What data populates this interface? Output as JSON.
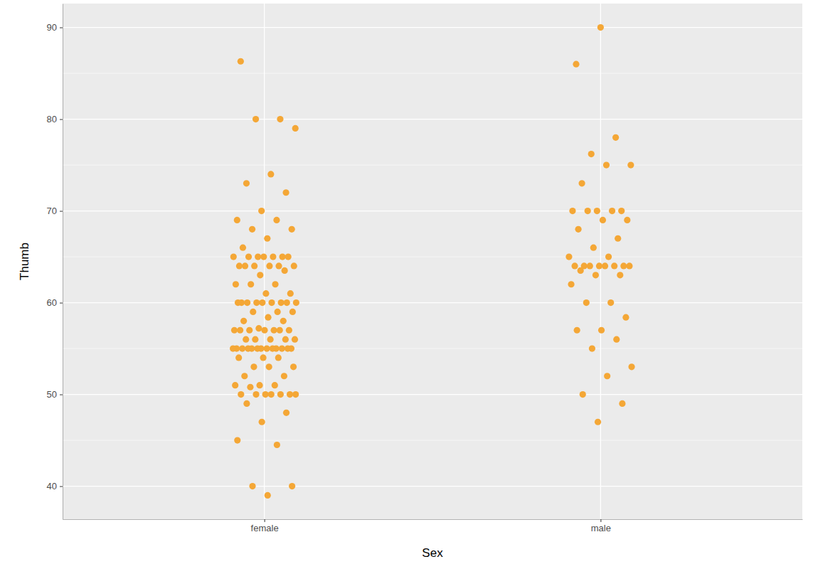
{
  "chart_data": {
    "type": "scatter",
    "x_label": "Sex",
    "y_label": "Thumb",
    "categories": [
      "female",
      "male"
    ],
    "values": [
      [
        86.3,
        80,
        80,
        79,
        74,
        73,
        72,
        70,
        69,
        69,
        68,
        68,
        67,
        66,
        65,
        65,
        65,
        65,
        65,
        65,
        65,
        64,
        64,
        64,
        64,
        64,
        64,
        63.5,
        63,
        62,
        62,
        62,
        61,
        61,
        60,
        60,
        60,
        60,
        60,
        60,
        60,
        60,
        60,
        59,
        59,
        59,
        58.4,
        58,
        58,
        57.2,
        57,
        57,
        57,
        57,
        57,
        57,
        57,
        56,
        56,
        56,
        56,
        56,
        55,
        55,
        55,
        55,
        55,
        55,
        55,
        55,
        55,
        55,
        55,
        55,
        55,
        54,
        54,
        54,
        53,
        53,
        53,
        52,
        52,
        51,
        51,
        51,
        50.8,
        50,
        50,
        50,
        50,
        50,
        50,
        50,
        49,
        48,
        47,
        45,
        44.5,
        40,
        40,
        39
      ],
      [
        90,
        86,
        78,
        76.2,
        75,
        75,
        73,
        70,
        70,
        70,
        70,
        70,
        69,
        69,
        68,
        67,
        66,
        65,
        65,
        64,
        64,
        64,
        64,
        64,
        64,
        64,
        64,
        63.5,
        63,
        63,
        62,
        60,
        60,
        58.4,
        57,
        57,
        56,
        55,
        53,
        52,
        50,
        49,
        47
      ]
    ],
    "color": "#f4a736",
    "marker": "circle",
    "ylim": [
      36.4,
      92.6
    ],
    "yticks": [
      40,
      50,
      60,
      70,
      80,
      90
    ],
    "grid": true
  }
}
